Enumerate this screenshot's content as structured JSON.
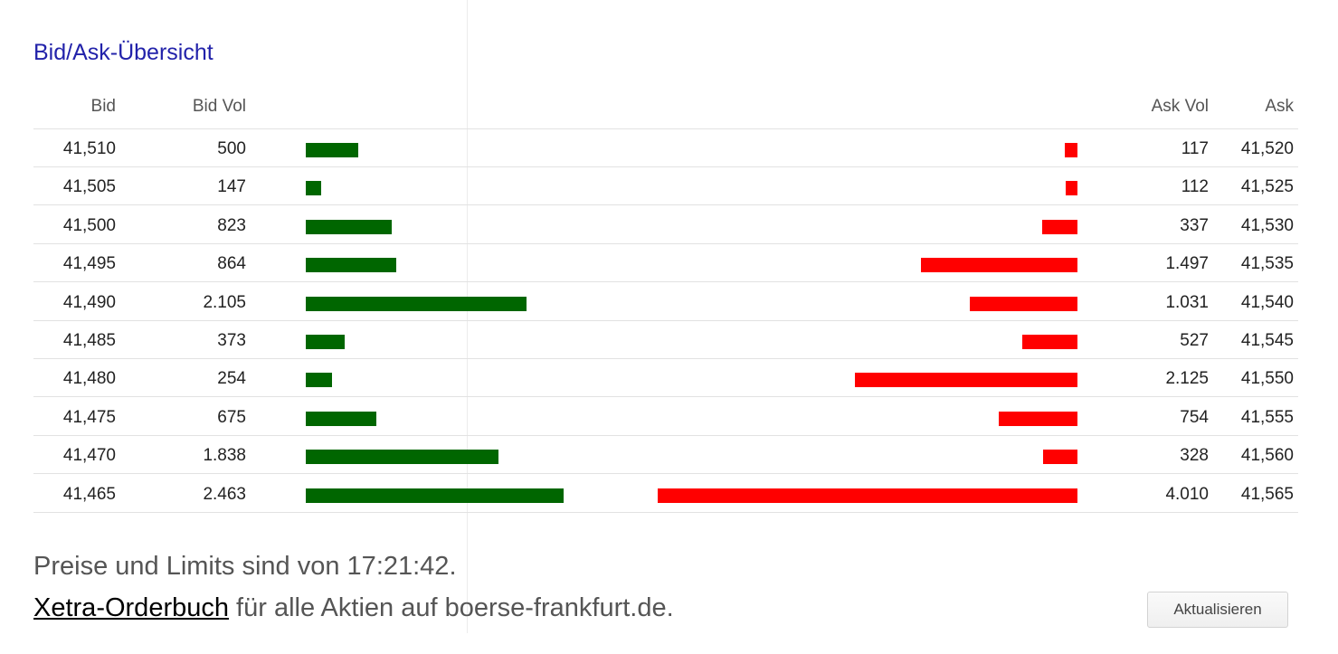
{
  "widget": {
    "title": "Bid/Ask-Übersicht"
  },
  "columns": {
    "bid": "Bid",
    "bid_vol": "Bid Vol",
    "ask_vol": "Ask Vol",
    "ask": "Ask"
  },
  "colors": {
    "title": "#2222aa",
    "bid_bar": "#006600",
    "ask_bar": "#ff0000"
  },
  "rows": [
    {
      "bid": "41,510",
      "bid_vol": "500",
      "ask_vol": "117",
      "ask": "41,520"
    },
    {
      "bid": "41,505",
      "bid_vol": "147",
      "ask_vol": "112",
      "ask": "41,525"
    },
    {
      "bid": "41,500",
      "bid_vol": "823",
      "ask_vol": "337",
      "ask": "41,530"
    },
    {
      "bid": "41,495",
      "bid_vol": "864",
      "ask_vol": "1.497",
      "ask": "41,535"
    },
    {
      "bid": "41,490",
      "bid_vol": "2.105",
      "ask_vol": "1.031",
      "ask": "41,540"
    },
    {
      "bid": "41,485",
      "bid_vol": "373",
      "ask_vol": "527",
      "ask": "41,545"
    },
    {
      "bid": "41,480",
      "bid_vol": "254",
      "ask_vol": "2.125",
      "ask": "41,550"
    },
    {
      "bid": "41,475",
      "bid_vol": "675",
      "ask_vol": "754",
      "ask": "41,555"
    },
    {
      "bid": "41,470",
      "bid_vol": "1.838",
      "ask_vol": "328",
      "ask": "41,560"
    },
    {
      "bid": "41,465",
      "bid_vol": "2.463",
      "ask_vol": "4.010",
      "ask": "41,565"
    }
  ],
  "footer": {
    "timestamp_text": "Preise und Limits sind von 17:21:42.",
    "link_text": "Xetra-Orderbuch",
    "link_suffix": " für alle Aktien auf boerse-frankfurt.de.",
    "refresh_label": "Aktualisieren"
  }
}
